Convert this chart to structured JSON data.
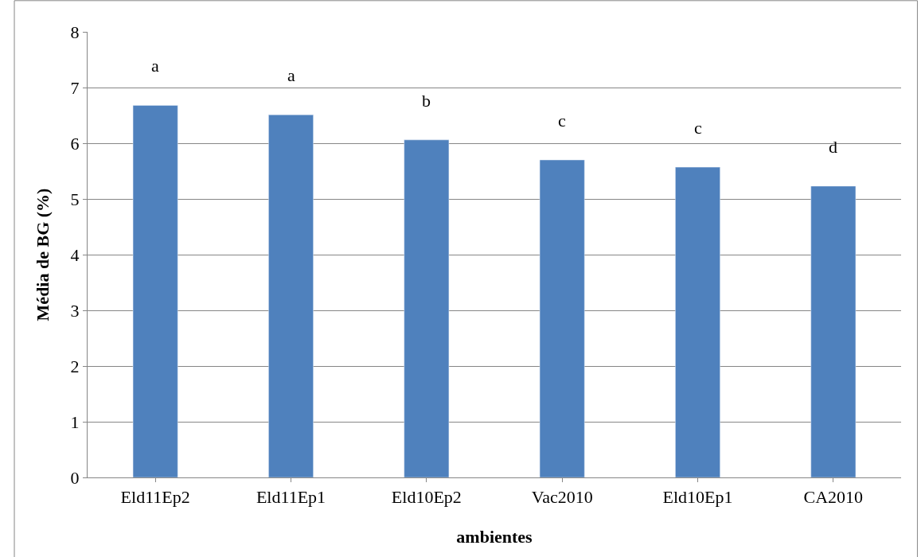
{
  "chart_data": {
    "type": "bar",
    "xlabel": "ambientes",
    "ylabel": "Média de BG (%)",
    "categories": [
      "Eld11Ep2",
      "Eld11Ep1",
      "Eld10Ep2",
      "Vac2010",
      "Eld10Ep1",
      "CA2010"
    ],
    "values": [
      6.68,
      6.51,
      6.06,
      5.7,
      5.57,
      5.23
    ],
    "color": "#4f81bd",
    "ylim": [
      0,
      8
    ],
    "yticks": [
      0,
      1,
      2,
      3,
      4,
      5,
      6,
      7,
      8
    ],
    "grid": "y",
    "legend": false,
    "annotations": [
      "a",
      "a",
      "b",
      "c",
      "c",
      "d"
    ]
  }
}
